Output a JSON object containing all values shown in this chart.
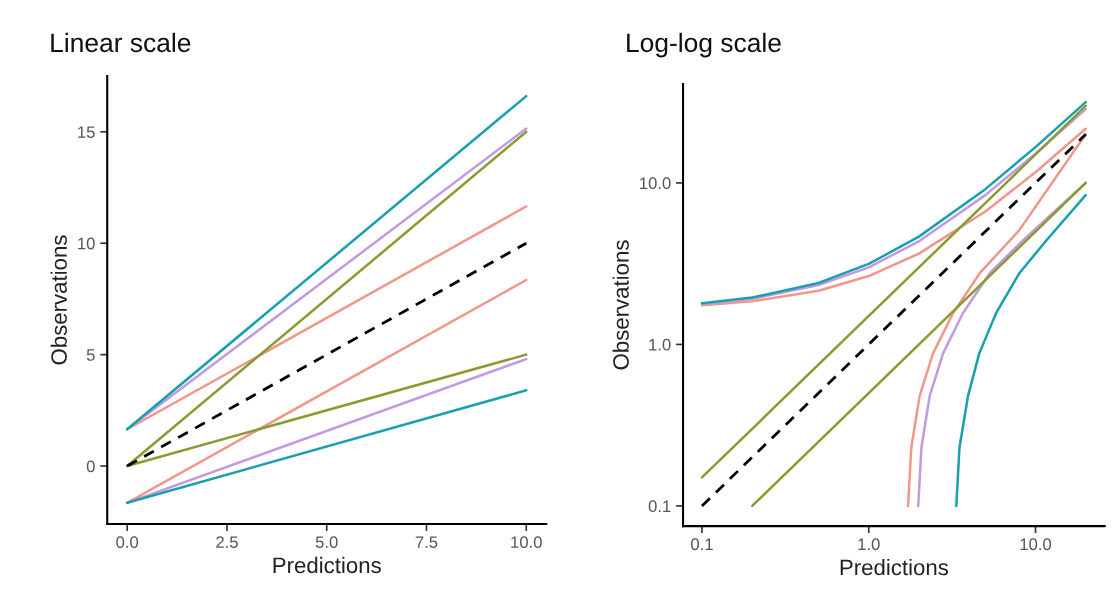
{
  "chart_data": [
    {
      "type": "line",
      "title": "Linear scale",
      "xlabel": "Predictions",
      "ylabel": "Observations",
      "xlim": [
        -0.5,
        10.5
      ],
      "ylim": [
        -2.6,
        17.5
      ],
      "xticks": [
        {
          "value": 0,
          "label": "0.0"
        },
        {
          "value": 2.5,
          "label": "2.5"
        },
        {
          "value": 5,
          "label": "5.0"
        },
        {
          "value": 7.5,
          "label": "7.5"
        },
        {
          "value": 10,
          "label": "10.0"
        }
      ],
      "yticks": [
        0,
        5,
        10,
        15
      ],
      "grid": false,
      "line_style": "solid",
      "series": [
        {
          "color": "#f0978b",
          "x": [
            0,
            10
          ],
          "values": [
            1.65,
            11.65
          ]
        },
        {
          "color": "#f0978b",
          "x": [
            0,
            10
          ],
          "values": [
            -1.65,
            8.35
          ]
        },
        {
          "color": "#c39ae0",
          "x": [
            0,
            10
          ],
          "values": [
            1.65,
            15.15
          ]
        },
        {
          "color": "#c39ae0",
          "x": [
            0,
            10
          ],
          "values": [
            -1.65,
            4.8
          ]
        },
        {
          "color": "#1a9fae",
          "x": [
            0,
            10
          ],
          "values": [
            1.65,
            16.6
          ]
        },
        {
          "color": "#1a9fae",
          "x": [
            0,
            10
          ],
          "values": [
            -1.65,
            3.4
          ]
        },
        {
          "color": "#8c9a32",
          "x": [
            0,
            10
          ],
          "values": [
            0,
            15
          ]
        },
        {
          "color": "#8c9a32",
          "x": [
            0,
            10
          ],
          "values": [
            0,
            5
          ]
        },
        {
          "color": "#000000",
          "line_style": "dashed",
          "x": [
            0,
            10
          ],
          "values": [
            0,
            10
          ]
        }
      ]
    },
    {
      "type": "line",
      "title": "Log-log scale",
      "xlabel": "Predictions",
      "ylabel": "Observations",
      "log": "xy",
      "xlim": [
        0.077,
        26
      ],
      "ylim": [
        0.075,
        41
      ],
      "xticks": [
        {
          "value": 0.1,
          "label": "0.1"
        },
        {
          "value": 1,
          "label": "1.0"
        },
        {
          "value": 10,
          "label": "10.0"
        }
      ],
      "yticks": [
        {
          "value": 0.1,
          "label": "0.1"
        },
        {
          "value": 1,
          "label": "1.0"
        },
        {
          "value": 10,
          "label": "10.0"
        }
      ],
      "grid": false,
      "line_style": "solid",
      "series": [
        {
          "color": "#f0978b",
          "x": [
            0.1,
            0.2,
            0.5,
            1,
            2,
            5,
            10,
            20
          ],
          "values": [
            1.75,
            1.85,
            2.15,
            2.65,
            3.65,
            6.65,
            11.65,
            21.65
          ]
        },
        {
          "color": "#f0978b",
          "x": [
            1.72,
            1.8,
            2.02,
            2.43,
            3.2,
            4.63,
            8.0,
            20
          ],
          "values": [
            0.1,
            0.23,
            0.48,
            0.88,
            1.56,
            2.76,
            5.1,
            20
          ]
        },
        {
          "color": "#c39ae0",
          "x": [
            0.1,
            0.2,
            0.5,
            1,
            2,
            5,
            10,
            20
          ],
          "values": [
            1.78,
            1.92,
            2.33,
            3.0,
            4.35,
            8.4,
            15.15,
            28.65
          ]
        },
        {
          "color": "#c39ae0",
          "x": [
            1.98,
            2.07,
            2.32,
            2.79,
            3.67,
            5.31,
            8.4,
            20
          ],
          "values": [
            0.1,
            0.23,
            0.48,
            0.88,
            1.56,
            2.76,
            4.4,
            10
          ]
        },
        {
          "color": "#1a9fae",
          "x": [
            0.1,
            0.2,
            0.5,
            1,
            2,
            5,
            10,
            20
          ],
          "values": [
            1.8,
            1.95,
            2.4,
            3.15,
            4.65,
            9.15,
            16.65,
            31.65
          ]
        },
        {
          "color": "#1a9fae",
          "x": [
            3.35,
            3.5,
            3.94,
            4.6,
            5.8,
            8.0,
            11.6,
            20
          ],
          "values": [
            0.1,
            0.23,
            0.48,
            0.88,
            1.56,
            2.76,
            4.4,
            8.4
          ]
        },
        {
          "color": "#8c9a32",
          "x": [
            0.1,
            20
          ],
          "values": [
            0.15,
            30
          ]
        },
        {
          "color": "#8c9a32",
          "x": [
            0.2,
            20
          ],
          "values": [
            0.1,
            10
          ]
        },
        {
          "color": "#000000",
          "line_style": "dashed",
          "x": [
            0.1,
            20
          ],
          "values": [
            0.1,
            20
          ]
        }
      ]
    }
  ]
}
